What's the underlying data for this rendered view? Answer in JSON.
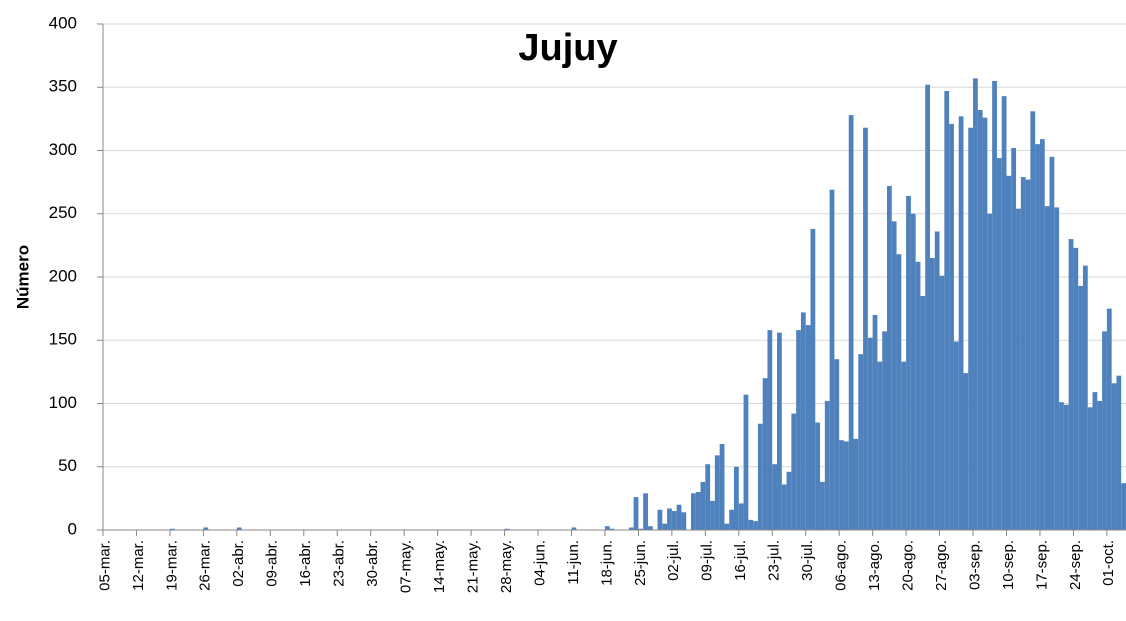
{
  "chart_data": {
    "type": "bar",
    "title": "Jujuy",
    "y_label": "Número",
    "color": "#4f81bd",
    "grid": true,
    "ylim": [
      0,
      400
    ],
    "yticks": [
      0,
      50,
      100,
      150,
      200,
      250,
      300,
      350,
      400
    ],
    "categories": [
      "05-mar.",
      null,
      null,
      null,
      null,
      null,
      null,
      "12-mar.",
      null,
      null,
      null,
      null,
      null,
      null,
      "19-mar.",
      null,
      null,
      null,
      null,
      null,
      null,
      "26-mar.",
      null,
      null,
      null,
      null,
      null,
      null,
      "02-abr.",
      null,
      null,
      null,
      null,
      null,
      null,
      "09-abr.",
      null,
      null,
      null,
      null,
      null,
      null,
      "16-abr.",
      null,
      null,
      null,
      null,
      null,
      null,
      "23-abr.",
      null,
      null,
      null,
      null,
      null,
      null,
      "30-abr.",
      null,
      null,
      null,
      null,
      null,
      null,
      "07-may.",
      null,
      null,
      null,
      null,
      null,
      null,
      "14-may.",
      null,
      null,
      null,
      null,
      null,
      null,
      "21-may.",
      null,
      null,
      null,
      null,
      null,
      null,
      "28-may.",
      null,
      null,
      null,
      null,
      null,
      null,
      "04-jun.",
      null,
      null,
      null,
      null,
      null,
      null,
      "11-jun.",
      null,
      null,
      null,
      null,
      null,
      null,
      "18-jun.",
      null,
      null,
      null,
      null,
      null,
      null,
      "25-jun.",
      null,
      null,
      null,
      null,
      null,
      null,
      "02-jul.",
      null,
      null,
      null,
      null,
      null,
      null,
      "09-jul.",
      null,
      null,
      null,
      null,
      null,
      null,
      "16-jul.",
      null,
      null,
      null,
      null,
      null,
      null,
      "23-jul.",
      null,
      null,
      null,
      null,
      null,
      null,
      "30-jul.",
      null,
      null,
      null,
      null,
      null,
      null,
      "06-ago.",
      null,
      null,
      null,
      null,
      null,
      null,
      "13-ago.",
      null,
      null,
      null,
      null,
      null,
      null,
      "20-ago.",
      null,
      null,
      null,
      null,
      null,
      null,
      "27-ago.",
      null,
      null,
      null,
      null,
      null,
      null,
      "03-sep.",
      null,
      null,
      null,
      null,
      null,
      null,
      "10-sep.",
      null,
      null,
      null,
      null,
      null,
      null,
      "17-sep.",
      null,
      null,
      null,
      null,
      null,
      null,
      "24-sep.",
      null,
      null,
      null,
      null,
      null,
      null,
      "01-oct.",
      null,
      null,
      null
    ],
    "values": [
      0,
      0,
      0,
      0,
      0,
      0,
      0,
      0,
      0,
      0,
      0,
      0,
      0,
      0,
      1,
      0,
      0,
      0,
      0,
      0,
      0,
      2,
      0,
      0,
      0,
      0,
      0,
      0,
      2,
      0,
      0,
      0,
      0,
      0,
      0,
      0,
      0,
      0,
      0,
      0,
      0,
      0,
      0,
      0,
      0,
      0,
      0,
      0,
      0,
      0,
      0,
      0,
      0,
      0,
      0,
      0,
      0,
      0,
      0,
      0,
      0,
      0,
      0,
      0,
      0,
      0,
      0,
      0,
      0,
      0,
      0,
      0,
      0,
      0,
      0,
      0,
      0,
      0,
      0,
      0,
      0,
      0,
      0,
      0,
      1,
      0,
      0,
      0,
      0,
      0,
      0,
      0,
      0,
      0,
      0,
      0,
      0,
      0,
      2,
      0,
      0,
      0,
      0,
      0,
      0,
      3,
      1,
      0,
      0,
      0,
      2,
      26,
      1,
      29,
      3,
      0,
      16,
      5,
      17,
      15,
      20,
      14,
      0,
      29,
      30,
      38,
      52,
      23,
      59,
      68,
      5,
      16,
      50,
      21,
      107,
      8,
      7,
      84,
      120,
      158,
      52,
      156,
      36,
      46,
      92,
      158,
      172,
      162,
      238,
      85,
      38,
      102,
      269,
      135,
      71,
      70,
      328,
      72,
      139,
      318,
      152,
      170,
      133,
      157,
      272,
      244,
      218,
      133,
      264,
      250,
      212,
      185,
      352,
      215,
      236,
      201,
      347,
      321,
      149,
      327,
      124,
      318,
      357,
      332,
      326,
      250,
      355,
      294,
      343,
      280,
      302,
      254,
      279,
      277,
      331,
      305,
      309,
      256,
      295,
      255,
      101,
      99,
      230,
      223,
      193,
      209,
      97,
      109,
      102,
      157,
      175,
      116,
      122,
      37
    ]
  }
}
